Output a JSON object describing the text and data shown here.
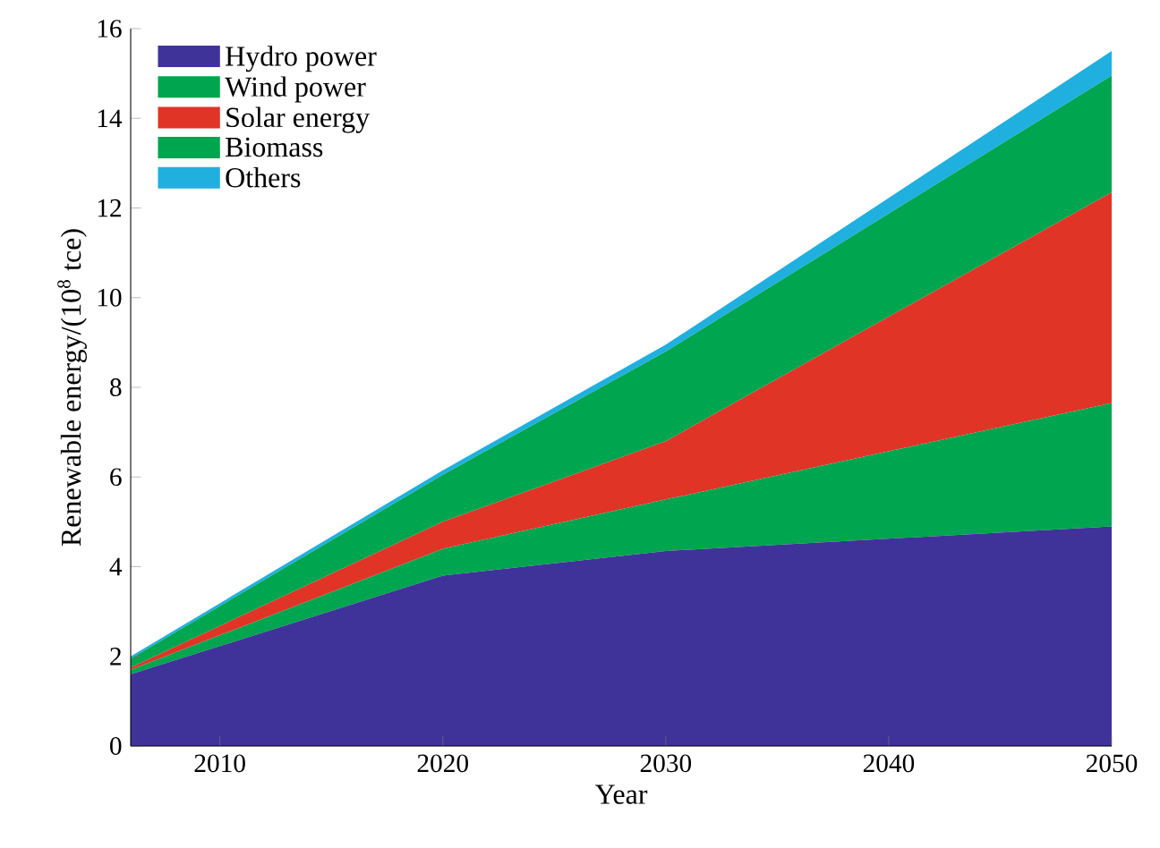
{
  "chart_data": {
    "type": "area",
    "stacked": true,
    "xlabel": "Year",
    "ylabel": "Renewable energy/(10$^{8}$ tce)",
    "x": [
      2006,
      2020,
      2030,
      2050
    ],
    "series": [
      {
        "name": "Hydro power",
        "color": "#3f3399",
        "values": [
          1.6,
          3.8,
          4.35,
          4.9
        ]
      },
      {
        "name": "Wind power",
        "color": "#00a54f",
        "values": [
          0.1,
          0.6,
          1.15,
          2.75
        ]
      },
      {
        "name": "Solar energy",
        "color": "#e03426",
        "values": [
          0.05,
          0.6,
          1.3,
          4.7
        ]
      },
      {
        "name": "Biomass",
        "color": "#00a54f",
        "values": [
          0.2,
          1.05,
          2.0,
          2.6
        ]
      },
      {
        "name": "Others",
        "color": "#1fb0e0",
        "values": [
          0.05,
          0.1,
          0.15,
          0.55
        ]
      }
    ],
    "xlim": [
      2006,
      2050
    ],
    "xticks": [
      2010,
      2020,
      2030,
      2040,
      2050
    ],
    "ylim": [
      0,
      16
    ],
    "yticks": [
      0,
      2,
      4,
      6,
      8,
      10,
      12,
      14,
      16
    ],
    "legend": "top left"
  }
}
